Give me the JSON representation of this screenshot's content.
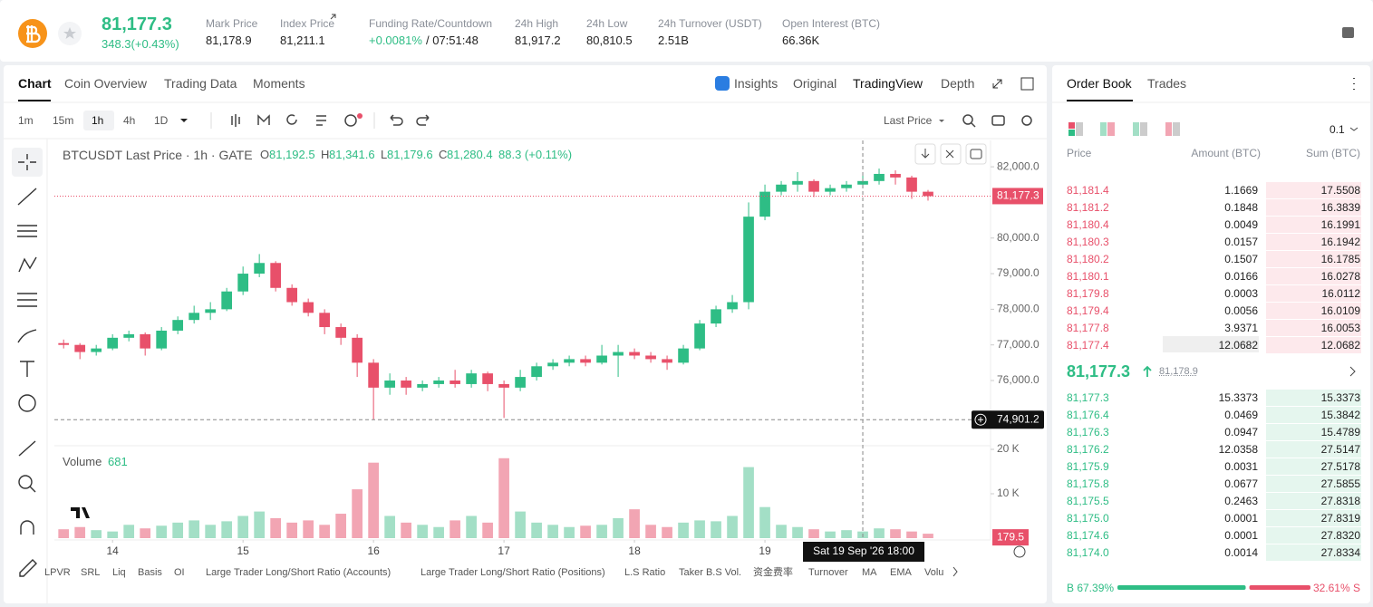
{
  "header": {
    "price": "81,177.3",
    "change": "348.3(+0.43%)",
    "stats": [
      {
        "label": "Mark Price",
        "value": "81,178.9"
      },
      {
        "label": "Index Price",
        "value": "81,211.1"
      },
      {
        "label": "Funding Rate/Countdown",
        "value": "+0.0081%",
        "value2": "/ 07:51:48"
      },
      {
        "label": "24h High",
        "value": "81,917.2"
      },
      {
        "label": "24h Low",
        "value": "80,810.5"
      },
      {
        "label": "24h Turnover (USDT)",
        "value": "2.51B"
      },
      {
        "label": "Open Interest (BTC)",
        "value": "66.36K"
      }
    ]
  },
  "chart_tabs": [
    "Chart",
    "Coin Overview",
    "Trading Data",
    "Moments"
  ],
  "view_tabs": [
    "Insights",
    "Original",
    "TradingView",
    "Depth"
  ],
  "timeframes": [
    "1m",
    "15m",
    "1h",
    "4h",
    "1D"
  ],
  "price_type": "Last Price",
  "legend": {
    "symbol": "BTCUSDT Last Price · 1h · GATE",
    "ohlc": [
      {
        "k": "O",
        "v": "81,192.5"
      },
      {
        "k": "H",
        "v": "81,341.6"
      },
      {
        "k": "L",
        "v": "81,179.6"
      },
      {
        "k": "C",
        "v": "81,280.4"
      }
    ],
    "change": "88.3 (+0.11%)"
  },
  "volume_legend": {
    "label": "Volume",
    "value": "681"
  },
  "indicators": [
    "LPVR",
    "SRL",
    "Liq",
    "Basis",
    "OI",
    "Large Trader Long/Short Ratio (Accounts)",
    "Large Trader Long/Short Ratio (Positions)",
    "L.S Ratio",
    "Taker B.S Vol.",
    "资金费率",
    "Turnover",
    "MA",
    "EMA",
    "Volu"
  ],
  "chart_data": {
    "type": "candlestick",
    "x": [
      -9,
      -6,
      -3,
      0,
      3,
      6,
      9,
      12,
      15,
      18,
      21,
      24,
      27,
      30,
      33,
      36,
      39,
      42,
      45,
      48,
      51,
      54,
      57,
      60,
      63,
      66,
      69,
      72,
      75,
      78,
      81,
      84,
      87,
      90,
      93,
      96,
      99,
      102,
      105,
      108,
      111,
      114,
      117,
      120,
      123,
      126,
      129,
      132,
      135,
      138,
      141,
      144,
      147,
      150
    ],
    "open": [
      77050,
      77000,
      76800,
      76900,
      77200,
      77300,
      76900,
      77400,
      77700,
      77900,
      78000,
      78500,
      79000,
      79300,
      78600,
      78200,
      77900,
      77500,
      77200,
      76500,
      75800,
      76000,
      75800,
      75900,
      76000,
      75900,
      76200,
      75900,
      75800,
      76100,
      76400,
      76500,
      76600,
      76500,
      76700,
      76800,
      76700,
      76600,
      76500,
      76900,
      77600,
      78000,
      78200,
      80600,
      81300,
      81500,
      81600,
      81300,
      81400,
      81500,
      81600,
      81800,
      81700,
      81300
    ],
    "high": [
      77150,
      77050,
      77000,
      77300,
      77400,
      77350,
      77500,
      77800,
      78100,
      78200,
      78600,
      79200,
      79550,
      79350,
      78700,
      78300,
      78000,
      77600,
      77300,
      76600,
      76200,
      76100,
      76000,
      76100,
      76300,
      76300,
      76250,
      76000,
      76300,
      76500,
      76600,
      76700,
      76700,
      77000,
      77000,
      76900,
      76800,
      76700,
      77000,
      77700,
      78100,
      78400,
      81000,
      81500,
      81600,
      81850,
      81650,
      81500,
      81600,
      81750,
      81950,
      81900,
      81750,
      81350
    ],
    "low": [
      76900,
      76600,
      76700,
      76850,
      77100,
      76700,
      76850,
      77300,
      77600,
      77700,
      77950,
      78400,
      78900,
      78500,
      78100,
      77800,
      77300,
      77000,
      76100,
      74900,
      75600,
      75600,
      75700,
      75800,
      75800,
      75800,
      75700,
      74950,
      75700,
      76000,
      76300,
      76400,
      76400,
      76450,
      76100,
      76600,
      76500,
      76300,
      76450,
      76850,
      77500,
      77900,
      78000,
      80500,
      81200,
      81300,
      81150,
      81200,
      81300,
      81400,
      81500,
      81500,
      81100,
      81050
    ],
    "close": [
      77000,
      76800,
      76900,
      77200,
      77300,
      76900,
      77400,
      77700,
      77900,
      78000,
      78500,
      79000,
      79300,
      78600,
      78200,
      77900,
      77500,
      77200,
      76500,
      75800,
      76000,
      75800,
      75900,
      76000,
      75900,
      76200,
      75900,
      75800,
      76100,
      76400,
      76500,
      76600,
      76500,
      76700,
      76800,
      76700,
      76600,
      76500,
      76900,
      77600,
      78000,
      78200,
      80600,
      81300,
      81500,
      81600,
      81300,
      81400,
      81500,
      81600,
      81800,
      81700,
      81300,
      81177.3
    ],
    "volume": [
      2000,
      2500,
      1800,
      1500,
      3000,
      2200,
      2800,
      3500,
      4000,
      3000,
      3800,
      5000,
      6000,
      4500,
      3500,
      4000,
      3000,
      5500,
      11000,
      17000,
      5000,
      3500,
      3000,
      2500,
      4000,
      5000,
      3500,
      18000,
      6000,
      3500,
      3000,
      2500,
      2800,
      3000,
      4500,
      6500,
      3000,
      2500,
      3500,
      4000,
      3800,
      5000,
      16000,
      7000,
      3000,
      2500,
      2000,
      1500,
      1800,
      1500,
      2200,
      2000,
      1500,
      1000
    ],
    "xlim": [
      -10.7,
      161.5
    ],
    "xticks": [
      {
        "value": 0,
        "label": "14"
      },
      {
        "value": 24,
        "label": "15"
      },
      {
        "value": 48,
        "label": "16"
      },
      {
        "value": 72,
        "label": "17"
      },
      {
        "value": 96,
        "label": "18"
      },
      {
        "value": 120,
        "label": "19"
      }
    ],
    "ylim": [
      74220,
      82740
    ],
    "yticks": [
      {
        "value": 76000,
        "label": "76,000.0"
      },
      {
        "value": 77000,
        "label": "77,000.0"
      },
      {
        "value": 78000,
        "label": "78,000.0"
      },
      {
        "value": 79000,
        "label": "79,000.0"
      },
      {
        "value": 80000,
        "label": "80,000.0"
      },
      {
        "value": 82000,
        "label": "82,000.0"
      }
    ],
    "volume_ylim": [
      0,
      20200
    ],
    "volume_yticks": [
      {
        "value": 10000,
        "label": "10 K"
      },
      {
        "value": 20000,
        "label": "20 K"
      }
    ],
    "grid": false,
    "up_color": "#2ebd85",
    "down_color": "#e8506a",
    "volume_up_color": "#a3dfc6",
    "volume_down_color": "#f2a5b3",
    "last_price": {
      "value": 81177.3,
      "label": "81,177.3"
    },
    "last_volume": 179.5,
    "crosshair": {
      "x": 138,
      "price": {
        "value": 74901.2,
        "label": "74,901.2"
      },
      "date_label": "Sat 19 Sep '26   18:00"
    }
  },
  "order_book": {
    "tabs": [
      "Order Book",
      "Trades"
    ],
    "precision": "0.1",
    "headers": [
      "Price",
      "Amount (BTC)",
      "Sum (BTC)"
    ],
    "asks": [
      [
        "81,181.4",
        "1.1669",
        "17.5508"
      ],
      [
        "81,181.2",
        "0.1848",
        "16.3839"
      ],
      [
        "81,180.4",
        "0.0049",
        "16.1991"
      ],
      [
        "81,180.3",
        "0.0157",
        "16.1942"
      ],
      [
        "81,180.2",
        "0.1507",
        "16.1785"
      ],
      [
        "81,180.1",
        "0.0166",
        "16.0278"
      ],
      [
        "81,179.8",
        "0.0003",
        "16.0112"
      ],
      [
        "81,179.4",
        "0.0056",
        "16.0109"
      ],
      [
        "81,177.8",
        "3.9371",
        "16.0053"
      ],
      [
        "81,177.4",
        "12.0682",
        "12.0682"
      ]
    ],
    "mid": {
      "price": "81,177.3",
      "mark": "81,178.9"
    },
    "bids": [
      [
        "81,177.3",
        "15.3373",
        "15.3373"
      ],
      [
        "81,176.4",
        "0.0469",
        "15.3842"
      ],
      [
        "81,176.3",
        "0.0947",
        "15.4789"
      ],
      [
        "81,176.2",
        "12.0358",
        "27.5147"
      ],
      [
        "81,175.9",
        "0.0031",
        "27.5178"
      ],
      [
        "81,175.8",
        "0.0677",
        "27.5855"
      ],
      [
        "81,175.5",
        "0.2463",
        "27.8318"
      ],
      [
        "81,175.0",
        "0.0001",
        "27.8319"
      ],
      [
        "81,174.6",
        "0.0001",
        "27.8320"
      ],
      [
        "81,174.0",
        "0.0014",
        "27.8334"
      ]
    ],
    "buy": {
      "value": 67.39,
      "label": "B 67.39%"
    },
    "sell": {
      "value": 32.61,
      "label": "32.61% S"
    }
  }
}
